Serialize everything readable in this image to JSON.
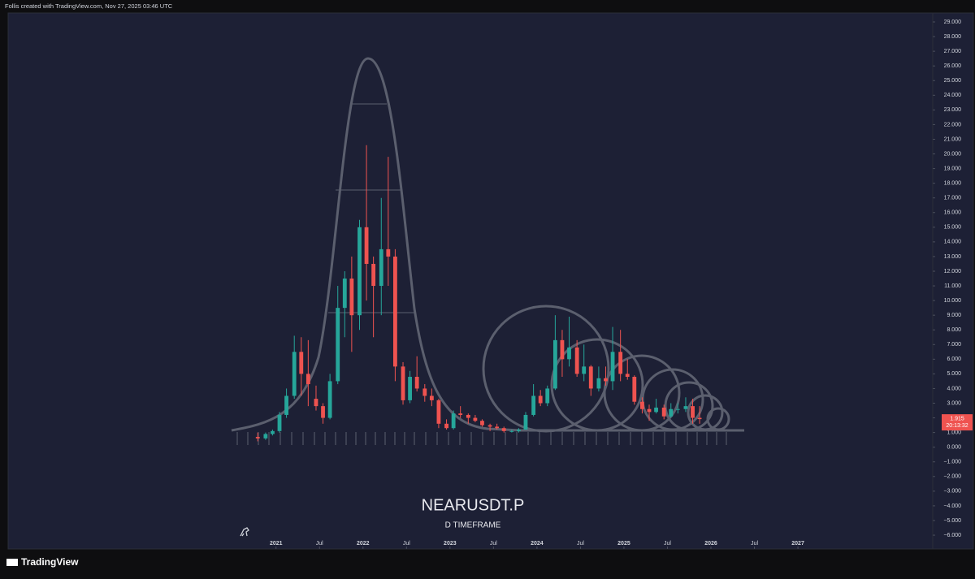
{
  "header": "Follis created with TradingView.com, Nov 27, 2025 03:46 UTC",
  "brand": "TradingView",
  "chart_data": {
    "type": "candlestick",
    "title": "NEARUSDT.P",
    "subtitle": "D TIMEFRAME",
    "up_color": "#26a69a",
    "down_color": "#ef5350",
    "x": [
      2020.79,
      2020.88,
      2020.96,
      2021.04,
      2021.12,
      2021.21,
      2021.29,
      2021.37,
      2021.46,
      2021.54,
      2021.62,
      2021.71,
      2021.79,
      2021.87,
      2021.96,
      2022.04,
      2022.12,
      2022.21,
      2022.29,
      2022.37,
      2022.46,
      2022.54,
      2022.62,
      2022.71,
      2022.79,
      2022.87,
      2022.96,
      2023.04,
      2023.12,
      2023.21,
      2023.29,
      2023.37,
      2023.46,
      2023.54,
      2023.62,
      2023.71,
      2023.79,
      2023.87,
      2023.96,
      2024.04,
      2024.12,
      2024.21,
      2024.29,
      2024.37,
      2024.46,
      2024.54,
      2024.62,
      2024.71,
      2024.79,
      2024.87,
      2024.96,
      2025.04,
      2025.12,
      2025.21,
      2025.29,
      2025.37,
      2025.46,
      2025.54,
      2025.62,
      2025.71,
      2025.79,
      2025.87
    ],
    "open": [
      0.7,
      0.6,
      0.9,
      1.1,
      2.2,
      3.5,
      6.5,
      5.0,
      3.3,
      2.8,
      2.0,
      4.5,
      9.5,
      11.5,
      9.0,
      15.0,
      12.5,
      11.0,
      13.5,
      13.0,
      5.5,
      3.2,
      4.8,
      4.0,
      3.5,
      3.2,
      1.6,
      1.3,
      2.3,
      2.2,
      2.0,
      1.8,
      1.5,
      1.4,
      1.3,
      1.1,
      1.1,
      1.2,
      2.2,
      3.5,
      3.0,
      4.0,
      7.3,
      6.0,
      6.8,
      5.0,
      5.5,
      4.0,
      4.7,
      4.5,
      6.5,
      5.0,
      4.8,
      3.1,
      2.6,
      2.4,
      2.7,
      2.1,
      2.6,
      2.6,
      2.8,
      2.0
    ],
    "high": [
      1.0,
      1.0,
      1.2,
      2.4,
      4.0,
      7.6,
      7.5,
      7.3,
      4.2,
      3.0,
      5.0,
      11.0,
      12.0,
      13.0,
      15.5,
      20.6,
      13.0,
      17.0,
      19.8,
      13.5,
      5.8,
      5.2,
      6.2,
      4.3,
      4.0,
      3.3,
      1.9,
      2.5,
      2.8,
      2.3,
      2.2,
      1.9,
      1.6,
      1.6,
      1.4,
      1.2,
      1.3,
      2.4,
      4.3,
      3.9,
      4.2,
      9.0,
      8.0,
      8.9,
      7.3,
      7.0,
      5.6,
      5.5,
      5.5,
      8.2,
      8.0,
      6.0,
      4.9,
      3.4,
      2.9,
      3.3,
      2.9,
      3.0,
      3.0,
      3.4,
      3.3,
      2.8
    ],
    "low": [
      0.4,
      0.5,
      0.8,
      1.0,
      2.0,
      3.3,
      3.5,
      2.8,
      2.5,
      1.6,
      1.9,
      4.3,
      7.5,
      6.5,
      8.0,
      10.0,
      7.5,
      9.0,
      11.0,
      4.5,
      2.9,
      3.0,
      3.8,
      3.1,
      2.8,
      1.3,
      1.2,
      1.2,
      2.0,
      1.6,
      1.7,
      1.4,
      1.1,
      1.2,
      1.0,
      1.0,
      1.0,
      1.2,
      2.1,
      2.8,
      2.8,
      3.9,
      4.8,
      5.5,
      4.8,
      4.5,
      3.5,
      3.8,
      4.2,
      3.9,
      4.5,
      4.6,
      2.9,
      2.3,
      1.8,
      2.3,
      1.9,
      2.0,
      2.3,
      2.4,
      1.6,
      1.6
    ],
    "close": [
      0.6,
      0.9,
      1.1,
      2.2,
      3.5,
      6.5,
      5.0,
      4.3,
      2.8,
      2.0,
      4.5,
      9.5,
      11.5,
      9.0,
      15.0,
      12.5,
      11.0,
      13.5,
      13.0,
      5.5,
      3.2,
      4.8,
      4.0,
      3.5,
      3.2,
      1.6,
      1.3,
      2.3,
      2.2,
      2.0,
      1.8,
      1.5,
      1.4,
      1.3,
      1.1,
      1.1,
      1.2,
      2.2,
      3.5,
      3.0,
      4.0,
      7.3,
      6.0,
      6.8,
      5.0,
      5.5,
      4.0,
      4.7,
      4.5,
      6.5,
      5.0,
      4.8,
      3.1,
      2.6,
      2.4,
      2.7,
      2.1,
      2.6,
      2.6,
      2.8,
      2.0,
      1.915
    ],
    "last_price": 1.915,
    "countdown": "20:13:32",
    "xlim": [
      2017.92,
      2028.55
    ],
    "ylim": [
      -6.94,
      29.61
    ],
    "xticks": [
      {
        "value": 2021,
        "label": "2021"
      },
      {
        "value": 2021.5,
        "label": "Jul"
      },
      {
        "value": 2022,
        "label": "2022"
      },
      {
        "value": 2022.5,
        "label": "Jul"
      },
      {
        "value": 2023,
        "label": "2023"
      },
      {
        "value": 2023.5,
        "label": "Jul"
      },
      {
        "value": 2024,
        "label": "2024"
      },
      {
        "value": 2024.5,
        "label": "Jul"
      },
      {
        "value": 2025,
        "label": "2025"
      },
      {
        "value": 2025.5,
        "label": "Jul"
      },
      {
        "value": 2026,
        "label": "2026"
      },
      {
        "value": 2026.5,
        "label": "Jul"
      },
      {
        "value": 2027,
        "label": "2027"
      }
    ],
    "yticks": [
      {
        "value": 29,
        "label": "29.000"
      },
      {
        "value": 28,
        "label": "28.000"
      },
      {
        "value": 27,
        "label": "27.000"
      },
      {
        "value": 26,
        "label": "26.000"
      },
      {
        "value": 25,
        "label": "25.000"
      },
      {
        "value": 24,
        "label": "24.000"
      },
      {
        "value": 23,
        "label": "23.000"
      },
      {
        "value": 22,
        "label": "22.000"
      },
      {
        "value": 21,
        "label": "21.000"
      },
      {
        "value": 20,
        "label": "20.000"
      },
      {
        "value": 19,
        "label": "19.000"
      },
      {
        "value": 18,
        "label": "18.000"
      },
      {
        "value": 17,
        "label": "17.000"
      },
      {
        "value": 16,
        "label": "16.000"
      },
      {
        "value": 15,
        "label": "15.000"
      },
      {
        "value": 14,
        "label": "14.000"
      },
      {
        "value": 13,
        "label": "13.000"
      },
      {
        "value": 12,
        "label": "12.000"
      },
      {
        "value": 11,
        "label": "11.000"
      },
      {
        "value": 10,
        "label": "10.000"
      },
      {
        "value": 9,
        "label": "9.000"
      },
      {
        "value": 8,
        "label": "8.000"
      },
      {
        "value": 7,
        "label": "7.000"
      },
      {
        "value": 6,
        "label": "6.000"
      },
      {
        "value": 5,
        "label": "5.000"
      },
      {
        "value": 4,
        "label": "4.000"
      },
      {
        "value": 3,
        "label": "3.000"
      },
      {
        "value": 2,
        "label": "2.000"
      },
      {
        "value": 1,
        "label": "1.000"
      },
      {
        "value": 0,
        "label": "0.000"
      },
      {
        "value": -1,
        "label": "−1.000"
      },
      {
        "value": -2,
        "label": "−2.000"
      },
      {
        "value": -3,
        "label": "−3.000"
      },
      {
        "value": -4,
        "label": "−4.000"
      },
      {
        "value": -5,
        "label": "−5.000"
      },
      {
        "value": -6,
        "label": "−6.000"
      }
    ]
  }
}
